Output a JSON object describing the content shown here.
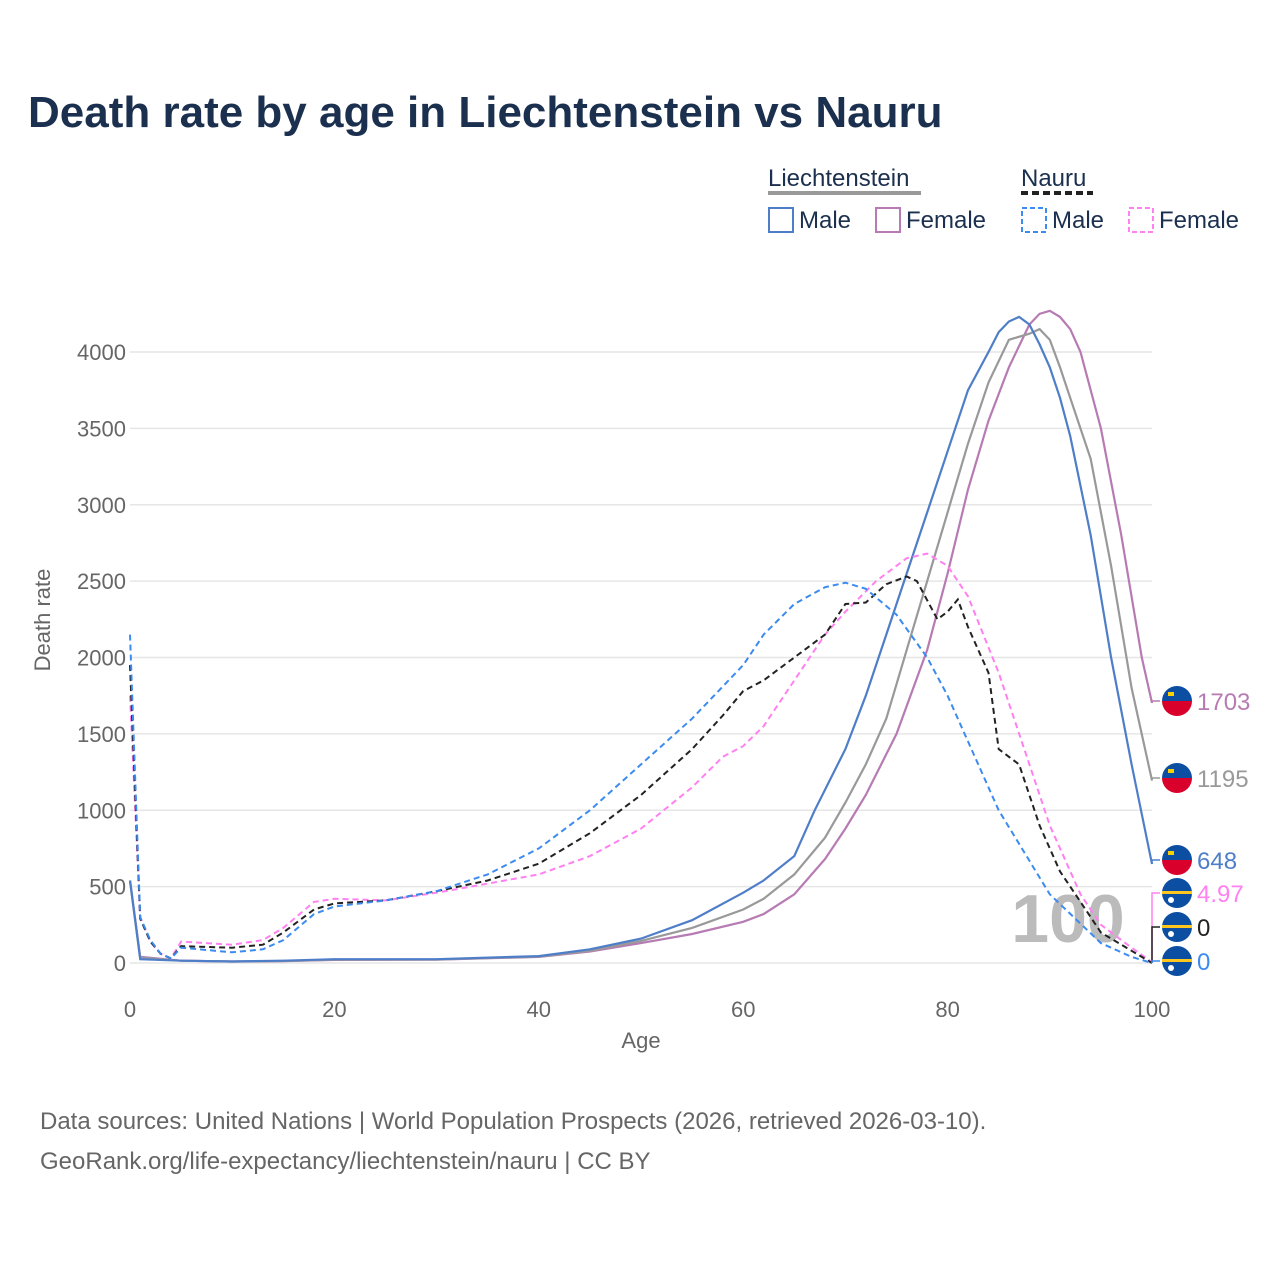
{
  "title": "Death rate by age in Liechtenstein vs Nauru",
  "footer": {
    "line1": "Data sources: United Nations | World Population Prospects (2026, retrieved 2026-03-10).",
    "line2": "GeoRank.org/life-expectancy/liechtenstein/nauru | CC BY"
  },
  "legend": {
    "group1": "Liechtenstein",
    "group2": "Nauru",
    "male": "Male",
    "female": "Female"
  },
  "watermark": "100",
  "chart_data": {
    "type": "line",
    "title": "Death rate by age in Liechtenstein vs Nauru",
    "xlabel": "Age",
    "ylabel": "Death rate",
    "xlim": [
      0,
      100
    ],
    "ylim": [
      0,
      4300
    ],
    "xticks": [
      0,
      20,
      40,
      60,
      80,
      100
    ],
    "yticks": [
      0,
      500,
      1000,
      1500,
      2000,
      2500,
      3000,
      3500,
      4000
    ],
    "grid": true,
    "legend_position": "top-right",
    "series": [
      {
        "name": "Liechtenstein Female",
        "color": "#b77bb4",
        "dash": false,
        "end_label": "1703",
        "flag": "liechtenstein",
        "points": [
          [
            0,
            540
          ],
          [
            1,
            40
          ],
          [
            5,
            15
          ],
          [
            10,
            10
          ],
          [
            15,
            12
          ],
          [
            20,
            20
          ],
          [
            30,
            22
          ],
          [
            40,
            40
          ],
          [
            45,
            75
          ],
          [
            50,
            130
          ],
          [
            55,
            190
          ],
          [
            60,
            270
          ],
          [
            62,
            320
          ],
          [
            65,
            450
          ],
          [
            68,
            680
          ],
          [
            70,
            880
          ],
          [
            72,
            1100
          ],
          [
            75,
            1500
          ],
          [
            78,
            2050
          ],
          [
            80,
            2550
          ],
          [
            82,
            3100
          ],
          [
            84,
            3550
          ],
          [
            86,
            3900
          ],
          [
            88,
            4180
          ],
          [
            89,
            4250
          ],
          [
            90,
            4270
          ],
          [
            91,
            4230
          ],
          [
            92,
            4150
          ],
          [
            93,
            4000
          ],
          [
            95,
            3500
          ],
          [
            97,
            2800
          ],
          [
            99,
            2000
          ],
          [
            100,
            1703
          ]
        ]
      },
      {
        "name": "Liechtenstein Both",
        "color": "#999999",
        "dash": false,
        "end_label": "1195",
        "flag": "liechtenstein",
        "points": [
          [
            0,
            540
          ],
          [
            1,
            35
          ],
          [
            5,
            15
          ],
          [
            10,
            10
          ],
          [
            15,
            13
          ],
          [
            20,
            22
          ],
          [
            30,
            23
          ],
          [
            40,
            42
          ],
          [
            45,
            80
          ],
          [
            50,
            145
          ],
          [
            55,
            230
          ],
          [
            60,
            350
          ],
          [
            62,
            420
          ],
          [
            65,
            580
          ],
          [
            68,
            820
          ],
          [
            70,
            1050
          ],
          [
            72,
            1300
          ],
          [
            74,
            1600
          ],
          [
            76,
            2050
          ],
          [
            78,
            2500
          ],
          [
            80,
            2950
          ],
          [
            82,
            3400
          ],
          [
            84,
            3800
          ],
          [
            86,
            4080
          ],
          [
            88,
            4120
          ],
          [
            89,
            4150
          ],
          [
            90,
            4080
          ],
          [
            91,
            3900
          ],
          [
            92,
            3700
          ],
          [
            94,
            3300
          ],
          [
            96,
            2600
          ],
          [
            98,
            1800
          ],
          [
            100,
            1195
          ]
        ]
      },
      {
        "name": "Liechtenstein Male",
        "color": "#4f7ec9",
        "dash": false,
        "end_label": "648",
        "flag": "liechtenstein",
        "points": [
          [
            0,
            540
          ],
          [
            1,
            25
          ],
          [
            5,
            15
          ],
          [
            10,
            10
          ],
          [
            15,
            15
          ],
          [
            20,
            25
          ],
          [
            30,
            25
          ],
          [
            40,
            45
          ],
          [
            45,
            90
          ],
          [
            50,
            160
          ],
          [
            55,
            280
          ],
          [
            60,
            460
          ],
          [
            62,
            540
          ],
          [
            65,
            700
          ],
          [
            67,
            1000
          ],
          [
            70,
            1400
          ],
          [
            72,
            1750
          ],
          [
            74,
            2150
          ],
          [
            76,
            2550
          ],
          [
            78,
            2950
          ],
          [
            80,
            3350
          ],
          [
            82,
            3750
          ],
          [
            84,
            4000
          ],
          [
            85,
            4130
          ],
          [
            86,
            4200
          ],
          [
            87,
            4230
          ],
          [
            88,
            4180
          ],
          [
            89,
            4050
          ],
          [
            90,
            3900
          ],
          [
            91,
            3700
          ],
          [
            92,
            3450
          ],
          [
            94,
            2800
          ],
          [
            96,
            2000
          ],
          [
            98,
            1300
          ],
          [
            100,
            648
          ]
        ]
      },
      {
        "name": "Nauru Female",
        "color": "#ff80f0",
        "dash": true,
        "end_label": "4.97",
        "flag": "nauru",
        "points": [
          [
            0,
            1750
          ],
          [
            1,
            300
          ],
          [
            2,
            140
          ],
          [
            3,
            60
          ],
          [
            4,
            30
          ],
          [
            5,
            140
          ],
          [
            10,
            120
          ],
          [
            13,
            150
          ],
          [
            15,
            230
          ],
          [
            18,
            400
          ],
          [
            20,
            420
          ],
          [
            25,
            410
          ],
          [
            30,
            460
          ],
          [
            35,
            520
          ],
          [
            40,
            580
          ],
          [
            45,
            700
          ],
          [
            50,
            880
          ],
          [
            55,
            1150
          ],
          [
            58,
            1350
          ],
          [
            60,
            1420
          ],
          [
            62,
            1550
          ],
          [
            65,
            1850
          ],
          [
            68,
            2150
          ],
          [
            70,
            2300
          ],
          [
            73,
            2500
          ],
          [
            76,
            2650
          ],
          [
            78,
            2680
          ],
          [
            80,
            2600
          ],
          [
            82,
            2400
          ],
          [
            85,
            1900
          ],
          [
            88,
            1300
          ],
          [
            90,
            900
          ],
          [
            93,
            450
          ],
          [
            95,
            250
          ],
          [
            98,
            100
          ],
          [
            100,
            4.97
          ]
        ]
      },
      {
        "name": "Nauru Both",
        "color": "#222222",
        "dash": true,
        "end_label": "0",
        "flag": "nauru",
        "points": [
          [
            0,
            1950
          ],
          [
            1,
            290
          ],
          [
            2,
            140
          ],
          [
            3,
            60
          ],
          [
            4,
            30
          ],
          [
            5,
            110
          ],
          [
            10,
            100
          ],
          [
            13,
            120
          ],
          [
            15,
            200
          ],
          [
            18,
            350
          ],
          [
            20,
            390
          ],
          [
            25,
            410
          ],
          [
            30,
            470
          ],
          [
            35,
            540
          ],
          [
            40,
            650
          ],
          [
            45,
            850
          ],
          [
            50,
            1100
          ],
          [
            55,
            1400
          ],
          [
            58,
            1620
          ],
          [
            60,
            1780
          ],
          [
            62,
            1850
          ],
          [
            65,
            2000
          ],
          [
            68,
            2150
          ],
          [
            70,
            2350
          ],
          [
            72,
            2360
          ],
          [
            74,
            2480
          ],
          [
            76,
            2530
          ],
          [
            77,
            2500
          ],
          [
            79,
            2250
          ],
          [
            80,
            2300
          ],
          [
            81,
            2380
          ],
          [
            82,
            2200
          ],
          [
            84,
            1900
          ],
          [
            85,
            1400
          ],
          [
            87,
            1300
          ],
          [
            89,
            900
          ],
          [
            91,
            600
          ],
          [
            93,
            400
          ],
          [
            95,
            200
          ],
          [
            98,
            80
          ],
          [
            100,
            0
          ]
        ]
      },
      {
        "name": "Nauru Male",
        "color": "#3b8bf0",
        "dash": true,
        "end_label": "0",
        "flag": "nauru",
        "points": [
          [
            0,
            2150
          ],
          [
            1,
            300
          ],
          [
            2,
            150
          ],
          [
            3,
            60
          ],
          [
            4,
            30
          ],
          [
            5,
            100
          ],
          [
            10,
            70
          ],
          [
            13,
            90
          ],
          [
            15,
            150
          ],
          [
            18,
            320
          ],
          [
            20,
            370
          ],
          [
            25,
            410
          ],
          [
            30,
            470
          ],
          [
            35,
            580
          ],
          [
            40,
            750
          ],
          [
            45,
            1000
          ],
          [
            50,
            1300
          ],
          [
            55,
            1600
          ],
          [
            60,
            1950
          ],
          [
            62,
            2150
          ],
          [
            65,
            2350
          ],
          [
            68,
            2460
          ],
          [
            70,
            2490
          ],
          [
            72,
            2450
          ],
          [
            75,
            2280
          ],
          [
            78,
            2000
          ],
          [
            80,
            1750
          ],
          [
            85,
            1000
          ],
          [
            90,
            450
          ],
          [
            95,
            130
          ],
          [
            98,
            40
          ],
          [
            100,
            0
          ]
        ]
      }
    ]
  }
}
